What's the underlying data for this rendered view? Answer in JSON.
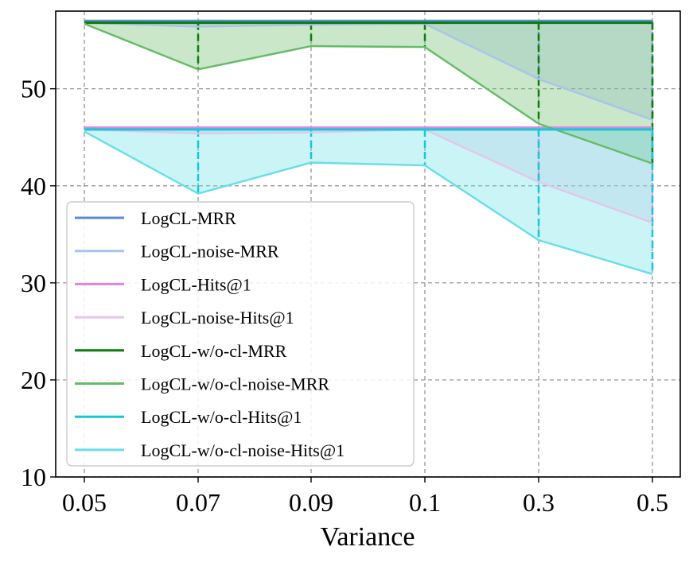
{
  "chart_data": {
    "type": "line",
    "title": "",
    "xlabel": "Variance",
    "ylabel": "",
    "categories": [
      "0.05",
      "0.07",
      "0.09",
      "0.1",
      "0.3",
      "0.5"
    ],
    "ylim": [
      10,
      58
    ],
    "yticks": [
      10,
      20,
      30,
      40,
      50
    ],
    "grid": true,
    "legend_position": "lower-left",
    "series": [
      {
        "name": "LogCL-MRR",
        "color": "#5b8bd6",
        "values": [
          57.0,
          57.0,
          57.0,
          57.0,
          57.0,
          57.0
        ]
      },
      {
        "name": "LogCL-noise-MRR",
        "color": "#a9c4ea",
        "values": [
          56.8,
          56.4,
          56.6,
          56.7,
          51.0,
          46.8
        ]
      },
      {
        "name": "LogCL-Hits@1",
        "color": "#dd88dd",
        "values": [
          46.0,
          46.0,
          46.0,
          46.0,
          46.0,
          46.0
        ]
      },
      {
        "name": "LogCL-noise-Hits@1",
        "color": "#e3c6ea",
        "values": [
          45.8,
          45.4,
          45.5,
          45.8,
          40.4,
          36.2
        ]
      },
      {
        "name": "LogCL-w/o-cl-MRR",
        "color": "#0a7d0a",
        "values": [
          56.8,
          56.8,
          56.8,
          56.8,
          56.8,
          56.8
        ]
      },
      {
        "name": "LogCL-w/o-cl-noise-MRR",
        "color": "#66bb66",
        "values": [
          56.7,
          52.0,
          54.4,
          54.3,
          46.4,
          42.3
        ]
      },
      {
        "name": "LogCL-w/o-cl-Hits@1",
        "color": "#15c8d8",
        "values": [
          45.8,
          45.8,
          45.8,
          45.8,
          45.8,
          45.8
        ]
      },
      {
        "name": "LogCL-w/o-cl-noise-Hits@1",
        "color": "#66dfe6",
        "values": [
          45.6,
          39.2,
          42.4,
          42.1,
          34.4,
          30.9
        ]
      }
    ],
    "fills": [
      {
        "between": [
          "LogCL-MRR",
          "LogCL-noise-MRR"
        ],
        "color": "#a9c4ea"
      },
      {
        "between": [
          "LogCL-Hits@1",
          "LogCL-noise-Hits@1"
        ],
        "color": "#e3c6ea"
      },
      {
        "between": [
          "LogCL-w/o-cl-MRR",
          "LogCL-w/o-cl-noise-MRR"
        ],
        "color": "#66bb66"
      },
      {
        "between": [
          "LogCL-w/o-cl-Hits@1",
          "LogCL-w/o-cl-noise-Hits@1"
        ],
        "color": "#66dfe6"
      }
    ]
  }
}
